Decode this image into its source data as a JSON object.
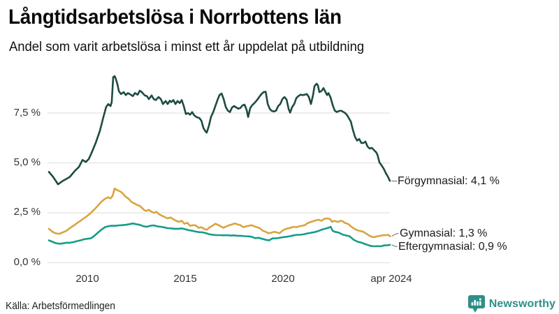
{
  "header": {
    "title": "Långtidsarbetslösa i Norrbottens län",
    "subtitle": "Andel som varit arbetslösa i minst ett år uppdelat på utbildning"
  },
  "footer": {
    "source": "Källa: Arbetsförmedlingen",
    "brand": "Newsworthy"
  },
  "colors": {
    "grid": "#e2e2e2",
    "connector": "#666666",
    "brand_teal": "#2d8f88"
  },
  "chart_data": {
    "type": "line",
    "title": "Långtidsarbetslösa i Norrbottens län",
    "subtitle": "Andel som varit arbetslösa i minst ett år uppdelat på utbildning",
    "xlabel": "",
    "ylabel": "",
    "grid": true,
    "legend_position": "end-of-line-labels",
    "xlim": [
      2008.0,
      2024.33
    ],
    "ylim": [
      0,
      9.5
    ],
    "y_ticks": [
      {
        "v": 0.0,
        "label": "0,0 %"
      },
      {
        "v": 2.5,
        "label": "2,5 %"
      },
      {
        "v": 5.0,
        "label": "5,0 %"
      },
      {
        "v": 7.5,
        "label": "7,5 %"
      }
    ],
    "x_ticks": [
      {
        "t": 2010,
        "label": "2010"
      },
      {
        "t": 2015,
        "label": "2015"
      },
      {
        "t": 2020,
        "label": "2020"
      },
      {
        "t": 2024.33,
        "label": "apr 2024"
      }
    ],
    "series": [
      {
        "name": "Förgymnasial",
        "end_label": "Förgymnasial: 4,1 %",
        "end_value": "4,1 %",
        "color": "#1d4b43",
        "x": [
          2008.0,
          2008.2,
          2008.44,
          2008.67,
          2008.84,
          2009.0,
          2009.24,
          2009.44,
          2009.61,
          2009.77,
          2009.91,
          2010.04,
          2010.24,
          2010.44,
          2010.61,
          2010.74,
          2010.84,
          2010.95,
          2011.01,
          2011.08,
          2011.15,
          2011.21,
          2011.28,
          2011.35,
          2011.45,
          2011.58,
          2011.68,
          2011.78,
          2011.92,
          2012.02,
          2012.12,
          2012.25,
          2012.35,
          2012.45,
          2012.59,
          2012.69,
          2012.79,
          2012.92,
          2013.02,
          2013.12,
          2013.25,
          2013.36,
          2013.46,
          2013.59,
          2013.69,
          2013.79,
          2013.86,
          2013.96,
          2014.06,
          2014.16,
          2014.26,
          2014.36,
          2014.46,
          2014.56,
          2014.66,
          2014.76,
          2014.86,
          2014.96,
          2015.06,
          2015.2,
          2015.3,
          2015.4,
          2015.5,
          2015.56,
          2015.66,
          2015.76,
          2015.87,
          2015.97,
          2016.07,
          2016.17,
          2016.27,
          2016.37,
          2016.47,
          2016.57,
          2016.67,
          2016.77,
          2016.87,
          2016.97,
          2017.07,
          2017.17,
          2017.27,
          2017.37,
          2017.47,
          2017.54,
          2017.64,
          2017.74,
          2017.84,
          2017.97,
          2018.07,
          2018.18,
          2018.28,
          2018.38,
          2018.48,
          2018.58,
          2018.68,
          2018.78,
          2018.88,
          2018.98,
          2019.08,
          2019.18,
          2019.28,
          2019.38,
          2019.48,
          2019.55,
          2019.65,
          2019.75,
          2019.85,
          2019.95,
          2020.05,
          2020.15,
          2020.25,
          2020.35,
          2020.45,
          2020.55,
          2020.65,
          2020.72,
          2020.82,
          2020.88,
          2020.95,
          2021.05,
          2021.15,
          2021.22,
          2021.32,
          2021.39,
          2021.49,
          2021.59,
          2021.69,
          2021.79,
          2021.89,
          2021.99,
          2022.09,
          2022.19,
          2022.29,
          2022.39,
          2022.46,
          2022.56,
          2022.66,
          2022.76,
          2022.86,
          2022.96,
          2023.06,
          2023.16,
          2023.26,
          2023.36,
          2023.46,
          2023.56,
          2023.66,
          2023.73,
          2023.83,
          2023.93,
          2024.03,
          2024.13,
          2024.23,
          2024.33
        ],
        "values": [
          4.55,
          4.3,
          3.93,
          4.1,
          4.2,
          4.3,
          4.6,
          4.8,
          5.15,
          5.05,
          5.2,
          5.5,
          6.0,
          6.6,
          7.3,
          7.8,
          7.95,
          7.85,
          8.05,
          9.3,
          9.35,
          9.2,
          8.95,
          8.6,
          8.45,
          8.55,
          8.4,
          8.5,
          8.42,
          8.35,
          8.5,
          8.42,
          8.62,
          8.55,
          8.38,
          8.35,
          8.2,
          8.38,
          8.2,
          8.15,
          8.3,
          8.2,
          7.95,
          8.1,
          7.95,
          8.12,
          8.05,
          8.15,
          7.95,
          8.1,
          8.0,
          8.15,
          7.85,
          7.45,
          7.5,
          7.42,
          7.55,
          7.38,
          7.3,
          7.25,
          7.12,
          6.75,
          6.58,
          6.52,
          6.85,
          7.3,
          7.55,
          7.85,
          8.15,
          8.4,
          8.48,
          8.2,
          7.8,
          7.62,
          7.55,
          7.78,
          7.85,
          7.78,
          7.72,
          7.75,
          7.88,
          7.92,
          7.65,
          7.3,
          7.75,
          7.9,
          8.0,
          8.15,
          8.3,
          8.45,
          8.55,
          8.57,
          7.95,
          7.7,
          7.6,
          7.58,
          7.62,
          7.85,
          7.95,
          8.2,
          8.3,
          8.18,
          7.7,
          7.52,
          7.8,
          7.95,
          8.25,
          8.35,
          8.42,
          8.4,
          8.42,
          8.45,
          8.3,
          7.95,
          8.4,
          8.85,
          8.97,
          8.9,
          8.55,
          8.6,
          8.75,
          8.6,
          8.4,
          8.5,
          8.28,
          7.9,
          7.62,
          7.55,
          7.6,
          7.62,
          7.56,
          7.5,
          7.38,
          7.2,
          7.07,
          6.65,
          6.3,
          6.12,
          6.2,
          6.0,
          6.0,
          6.07,
          5.82,
          5.72,
          5.76,
          5.65,
          5.55,
          5.42,
          5.02,
          4.88,
          4.72,
          4.5,
          4.32,
          4.1
        ]
      },
      {
        "name": "Gymnasial",
        "end_label": "Gymnasial: 1,3 %",
        "end_value": "1,3 %",
        "color": "#d9a43f",
        "x": [
          2008.0,
          2008.17,
          2008.33,
          2008.5,
          2008.67,
          2008.84,
          2009.0,
          2009.17,
          2009.34,
          2009.51,
          2009.67,
          2009.84,
          2010.01,
          2010.18,
          2010.34,
          2010.51,
          2010.68,
          2010.84,
          2010.95,
          2011.05,
          2011.15,
          2011.25,
          2011.35,
          2011.45,
          2011.55,
          2011.68,
          2011.82,
          2011.95,
          2012.08,
          2012.22,
          2012.35,
          2012.48,
          2012.59,
          2012.69,
          2012.79,
          2012.89,
          2013.02,
          2013.15,
          2013.29,
          2013.42,
          2013.56,
          2013.69,
          2013.82,
          2013.96,
          2014.09,
          2014.22,
          2014.36,
          2014.49,
          2014.63,
          2014.76,
          2014.89,
          2015.03,
          2015.16,
          2015.3,
          2015.43,
          2015.56,
          2015.7,
          2015.83,
          2015.97,
          2016.1,
          2016.23,
          2016.37,
          2016.5,
          2016.64,
          2016.77,
          2016.9,
          2017.04,
          2017.17,
          2017.31,
          2017.44,
          2017.57,
          2017.71,
          2017.84,
          2017.97,
          2018.11,
          2018.24,
          2018.38,
          2018.51,
          2018.65,
          2018.78,
          2018.91,
          2019.05,
          2019.18,
          2019.31,
          2019.45,
          2019.58,
          2019.72,
          2019.85,
          2019.98,
          2020.12,
          2020.25,
          2020.38,
          2020.52,
          2020.65,
          2020.78,
          2020.92,
          2021.05,
          2021.19,
          2021.32,
          2021.45,
          2021.56,
          2021.66,
          2021.75,
          2021.86,
          2021.96,
          2022.06,
          2022.16,
          2022.26,
          2022.36,
          2022.46,
          2022.56,
          2022.66,
          2022.76,
          2022.86,
          2022.96,
          2023.06,
          2023.16,
          2023.26,
          2023.36,
          2023.46,
          2023.56,
          2023.66,
          2023.76,
          2023.86,
          2023.96,
          2024.06,
          2024.16,
          2024.26,
          2024.33
        ],
        "values": [
          1.7,
          1.55,
          1.47,
          1.45,
          1.52,
          1.6,
          1.73,
          1.85,
          1.98,
          2.1,
          2.22,
          2.35,
          2.5,
          2.67,
          2.85,
          3.05,
          3.2,
          3.28,
          3.22,
          3.35,
          3.72,
          3.65,
          3.6,
          3.55,
          3.45,
          3.3,
          3.2,
          3.05,
          2.98,
          2.9,
          2.85,
          2.72,
          2.62,
          2.6,
          2.65,
          2.57,
          2.5,
          2.55,
          2.42,
          2.35,
          2.28,
          2.22,
          2.27,
          2.18,
          2.1,
          2.05,
          2.1,
          1.95,
          2.0,
          1.85,
          1.88,
          1.87,
          1.75,
          1.78,
          1.7,
          1.65,
          1.78,
          1.85,
          1.95,
          1.9,
          1.82,
          1.75,
          1.82,
          1.88,
          1.92,
          1.97,
          1.92,
          1.88,
          1.78,
          1.82,
          1.85,
          1.88,
          1.82,
          1.78,
          1.72,
          1.6,
          1.55,
          1.48,
          1.5,
          1.55,
          1.52,
          1.48,
          1.6,
          1.68,
          1.72,
          1.75,
          1.8,
          1.78,
          1.82,
          1.85,
          1.88,
          1.98,
          2.03,
          2.08,
          2.12,
          2.15,
          2.1,
          2.2,
          2.22,
          2.2,
          2.05,
          2.1,
          2.07,
          2.05,
          2.1,
          2.08,
          2.0,
          1.97,
          1.92,
          1.82,
          1.75,
          1.68,
          1.63,
          1.6,
          1.58,
          1.55,
          1.48,
          1.42,
          1.35,
          1.3,
          1.28,
          1.3,
          1.33,
          1.35,
          1.37,
          1.38,
          1.38,
          1.4,
          1.32
        ]
      },
      {
        "name": "Eftergymnasial",
        "end_label": "Eftergymnasial: 0,9 %",
        "end_value": "0,9 %",
        "color": "#169c87",
        "x": [
          2008.0,
          2008.17,
          2008.33,
          2008.5,
          2008.67,
          2008.84,
          2009.0,
          2009.17,
          2009.34,
          2009.51,
          2009.67,
          2009.84,
          2010.01,
          2010.18,
          2010.34,
          2010.51,
          2010.68,
          2010.84,
          2011.01,
          2011.18,
          2011.35,
          2011.51,
          2011.68,
          2011.85,
          2012.02,
          2012.18,
          2012.35,
          2012.52,
          2012.69,
          2012.85,
          2013.02,
          2013.19,
          2013.36,
          2013.52,
          2013.69,
          2013.86,
          2014.02,
          2014.19,
          2014.36,
          2014.53,
          2014.69,
          2014.86,
          2015.03,
          2015.2,
          2015.36,
          2015.53,
          2015.7,
          2015.87,
          2016.03,
          2016.2,
          2016.37,
          2016.53,
          2016.7,
          2016.87,
          2017.04,
          2017.2,
          2017.37,
          2017.54,
          2017.71,
          2017.87,
          2018.04,
          2018.21,
          2018.38,
          2018.54,
          2018.71,
          2018.88,
          2019.05,
          2019.21,
          2019.38,
          2019.55,
          2019.72,
          2019.88,
          2020.05,
          2020.22,
          2020.38,
          2020.55,
          2020.72,
          2020.88,
          2021.05,
          2021.22,
          2021.39,
          2021.49,
          2021.59,
          2021.69,
          2021.79,
          2021.89,
          2021.99,
          2022.09,
          2022.19,
          2022.29,
          2022.39,
          2022.49,
          2022.59,
          2022.69,
          2022.79,
          2022.89,
          2022.99,
          2023.09,
          2023.19,
          2023.29,
          2023.39,
          2023.49,
          2023.59,
          2023.69,
          2023.79,
          2023.89,
          2023.99,
          2024.09,
          2024.19,
          2024.26,
          2024.33
        ],
        "values": [
          1.12,
          1.05,
          0.98,
          0.95,
          0.97,
          1.0,
          1.0,
          1.03,
          1.08,
          1.12,
          1.17,
          1.2,
          1.22,
          1.35,
          1.5,
          1.65,
          1.78,
          1.83,
          1.85,
          1.85,
          1.87,
          1.88,
          1.9,
          1.93,
          1.97,
          1.93,
          1.9,
          1.83,
          1.8,
          1.85,
          1.87,
          1.82,
          1.8,
          1.77,
          1.73,
          1.72,
          1.7,
          1.7,
          1.72,
          1.68,
          1.63,
          1.6,
          1.56,
          1.53,
          1.52,
          1.48,
          1.42,
          1.4,
          1.38,
          1.38,
          1.37,
          1.38,
          1.36,
          1.37,
          1.35,
          1.35,
          1.33,
          1.32,
          1.3,
          1.23,
          1.25,
          1.2,
          1.15,
          1.12,
          1.22,
          1.22,
          1.25,
          1.28,
          1.3,
          1.33,
          1.37,
          1.4,
          1.4,
          1.43,
          1.47,
          1.5,
          1.53,
          1.58,
          1.65,
          1.7,
          1.75,
          1.8,
          1.6,
          1.55,
          1.53,
          1.5,
          1.45,
          1.4,
          1.38,
          1.35,
          1.33,
          1.25,
          1.15,
          1.1,
          1.05,
          1.02,
          1.0,
          0.95,
          0.92,
          0.88,
          0.85,
          0.83,
          0.82,
          0.83,
          0.83,
          0.82,
          0.85,
          0.87,
          0.87,
          0.88,
          0.9
        ]
      }
    ]
  }
}
